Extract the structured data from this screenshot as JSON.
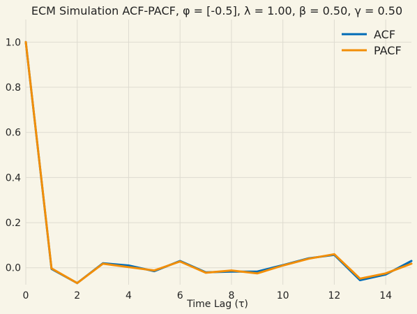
{
  "chart_data": {
    "type": "line",
    "title": "ECM Simulation ACF-PACF, φ = [-0.5], λ = 1.00, β = 0.50, γ = 0.50",
    "xlabel": "Time Lag (τ)",
    "ylabel": "",
    "xlim": [
      0,
      15
    ],
    "ylim": [
      -0.075,
      1.1
    ],
    "grid": true,
    "legend_position": "top-right",
    "x": [
      0,
      1,
      2,
      3,
      4,
      5,
      6,
      7,
      8,
      9,
      10,
      11,
      12,
      13,
      14,
      15
    ],
    "x_ticks": [
      "0",
      "2",
      "4",
      "6",
      "8",
      "10",
      "12",
      "14"
    ],
    "y_ticks": [
      "0.0",
      "0.2",
      "0.4",
      "0.6",
      "0.8",
      "1.0"
    ],
    "series": [
      {
        "name": "ACF",
        "color": "#006bb6",
        "values": [
          1.0,
          -0.005,
          -0.068,
          0.02,
          0.01,
          -0.015,
          0.03,
          -0.02,
          -0.017,
          -0.017,
          0.012,
          0.042,
          0.057,
          -0.055,
          -0.03,
          0.03
        ]
      },
      {
        "name": "PACF",
        "color": "#f28e07",
        "values": [
          1.0,
          -0.003,
          -0.068,
          0.018,
          0.003,
          -0.012,
          0.028,
          -0.022,
          -0.012,
          -0.025,
          0.01,
          0.04,
          0.06,
          -0.048,
          -0.025,
          0.018
        ]
      }
    ]
  }
}
